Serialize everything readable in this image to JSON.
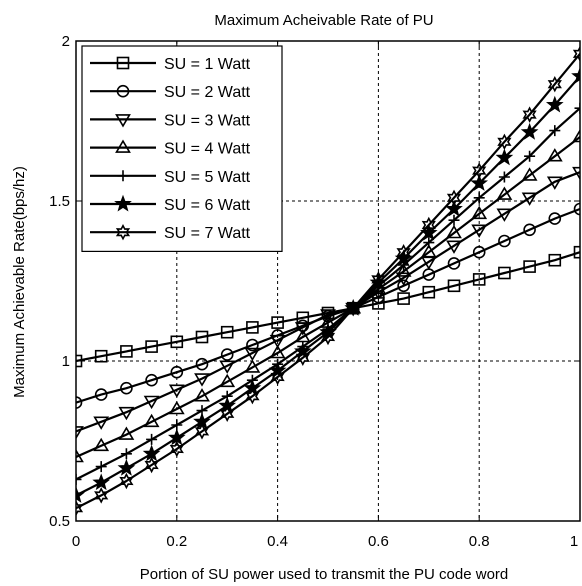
{
  "chart_data": {
    "type": "line",
    "title": "Maximum Acheivable Rate of PU",
    "xlabel": "Portion of SU power used to transmit the PU code word",
    "ylabel": "Maximum Achievable Rate(bps/hz)",
    "xlim": [
      0,
      1
    ],
    "ylim": [
      0.5,
      2
    ],
    "xticks": [
      0,
      0.2,
      0.4,
      0.6,
      0.8,
      1
    ],
    "xtick_labels": [
      "0",
      "0.2",
      "0.4",
      "0.6",
      "0.8",
      "1"
    ],
    "yticks": [
      0.5,
      1,
      1.5,
      2
    ],
    "ytick_labels": [
      "0.5",
      "1",
      "1.5",
      "2"
    ],
    "grid": true,
    "legend_position": "top-left",
    "x": [
      0,
      0.05,
      0.1,
      0.15,
      0.2,
      0.25,
      0.3,
      0.35,
      0.4,
      0.45,
      0.5,
      0.55,
      0.6,
      0.65,
      0.7,
      0.75,
      0.8,
      0.85,
      0.9,
      0.95,
      1
    ],
    "series": [
      {
        "name": "SU = 1 Watt",
        "marker": "square",
        "values": [
          1.0,
          1.015,
          1.03,
          1.045,
          1.06,
          1.075,
          1.09,
          1.105,
          1.12,
          1.135,
          1.15,
          1.165,
          1.18,
          1.195,
          1.215,
          1.235,
          1.255,
          1.275,
          1.295,
          1.315,
          1.34
        ]
      },
      {
        "name": "SU = 2 Watt",
        "marker": "circle",
        "values": [
          0.87,
          0.895,
          0.915,
          0.94,
          0.965,
          0.99,
          1.02,
          1.05,
          1.08,
          1.11,
          1.14,
          1.165,
          1.2,
          1.235,
          1.27,
          1.305,
          1.34,
          1.375,
          1.41,
          1.445,
          1.475
        ]
      },
      {
        "name": "SU = 3 Watt",
        "marker": "triangle-down",
        "values": [
          0.78,
          0.81,
          0.84,
          0.875,
          0.91,
          0.945,
          0.985,
          1.025,
          1.065,
          1.105,
          1.145,
          1.165,
          1.215,
          1.26,
          1.31,
          1.36,
          1.41,
          1.46,
          1.51,
          1.56,
          1.59
        ]
      },
      {
        "name": "SU = 4 Watt",
        "marker": "triangle-up",
        "values": [
          0.7,
          0.735,
          0.77,
          0.81,
          0.85,
          0.89,
          0.935,
          0.98,
          1.025,
          1.075,
          1.12,
          1.165,
          1.225,
          1.28,
          1.34,
          1.4,
          1.46,
          1.52,
          1.58,
          1.64,
          1.7
        ]
      },
      {
        "name": "SU = 5 Watt",
        "marker": "plus",
        "values": [
          0.63,
          0.67,
          0.71,
          0.755,
          0.8,
          0.845,
          0.89,
          0.94,
          0.99,
          1.045,
          1.1,
          1.165,
          1.235,
          1.3,
          1.37,
          1.44,
          1.51,
          1.575,
          1.64,
          1.72,
          1.79
        ]
      },
      {
        "name": "SU = 6 Watt",
        "marker": "star",
        "values": [
          0.58,
          0.62,
          0.665,
          0.71,
          0.76,
          0.81,
          0.86,
          0.915,
          0.97,
          1.03,
          1.09,
          1.165,
          1.245,
          1.32,
          1.4,
          1.475,
          1.555,
          1.635,
          1.715,
          1.8,
          1.89
        ]
      },
      {
        "name": "SU = 7 Watt",
        "marker": "hexagram",
        "values": [
          0.54,
          0.58,
          0.625,
          0.675,
          0.725,
          0.78,
          0.835,
          0.89,
          0.95,
          1.01,
          1.075,
          1.165,
          1.255,
          1.34,
          1.425,
          1.51,
          1.595,
          1.685,
          1.77,
          1.865,
          1.96
        ]
      }
    ]
  }
}
